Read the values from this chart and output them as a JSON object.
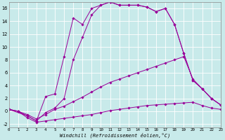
{
  "xlabel": "Windchill (Refroidissement éolien,°C)",
  "xlim": [
    0,
    23
  ],
  "ylim": [
    -2.5,
    17
  ],
  "xticks": [
    0,
    1,
    2,
    3,
    4,
    5,
    6,
    7,
    8,
    9,
    10,
    11,
    12,
    13,
    14,
    15,
    16,
    17,
    18,
    19,
    20,
    21,
    22,
    23
  ],
  "yticks": [
    -2,
    0,
    2,
    4,
    6,
    8,
    10,
    12,
    14,
    16
  ],
  "background_color": "#c8eaea",
  "grid_color": "#b0d8d8",
  "line_color": "#990099",
  "line1_x": [
    0,
    1,
    2,
    3,
    4,
    5,
    6,
    7,
    8,
    9,
    10,
    11,
    12,
    13,
    14,
    15,
    16,
    17,
    18,
    19,
    20,
    21,
    22,
    23
  ],
  "line1_y": [
    0.3,
    0.0,
    -0.7,
    -1.5,
    -0.2,
    0.5,
    2.0,
    8.0,
    11.5,
    15.0,
    16.5,
    17.0,
    16.5,
    16.5,
    16.5,
    16.2,
    15.5,
    16.0,
    13.5,
    9.0,
    4.8,
    3.5,
    2.0,
    1.0
  ],
  "line2_x": [
    0,
    2,
    3,
    4,
    5,
    6,
    7,
    8,
    9,
    10,
    11,
    12,
    13,
    14,
    15,
    16,
    17,
    18,
    19,
    20,
    21,
    22,
    23
  ],
  "line2_y": [
    0.3,
    -0.7,
    -1.5,
    2.3,
    2.7,
    8.5,
    14.5,
    13.5,
    16.0,
    16.5,
    17.0,
    16.5,
    16.5,
    16.5,
    16.2,
    15.5,
    16.0,
    13.5,
    9.0,
    4.8,
    3.5,
    2.0,
    1.0
  ],
  "line3_x": [
    0,
    1,
    2,
    3,
    4,
    5,
    6,
    7,
    8,
    9,
    10,
    11,
    12,
    13,
    14,
    15,
    16,
    17,
    18,
    19,
    20,
    21,
    22,
    23
  ],
  "line3_y": [
    0.3,
    0.0,
    -0.5,
    -1.2,
    -0.5,
    0.3,
    0.8,
    1.5,
    2.2,
    3.0,
    3.8,
    4.5,
    5.0,
    5.5,
    6.0,
    6.5,
    7.0,
    7.5,
    8.0,
    8.5,
    5.0,
    3.5,
    2.0,
    1.0
  ],
  "line4_x": [
    0,
    1,
    2,
    3,
    4,
    5,
    6,
    7,
    8,
    9,
    10,
    11,
    12,
    13,
    14,
    15,
    16,
    17,
    18,
    19,
    20,
    21,
    22,
    23
  ],
  "line4_y": [
    0.3,
    0.0,
    -1.0,
    -1.7,
    -1.5,
    -1.3,
    -1.1,
    -0.9,
    -0.7,
    -0.5,
    -0.2,
    0.1,
    0.3,
    0.5,
    0.7,
    0.9,
    1.0,
    1.1,
    1.2,
    1.3,
    1.4,
    0.9,
    0.5,
    0.3
  ]
}
